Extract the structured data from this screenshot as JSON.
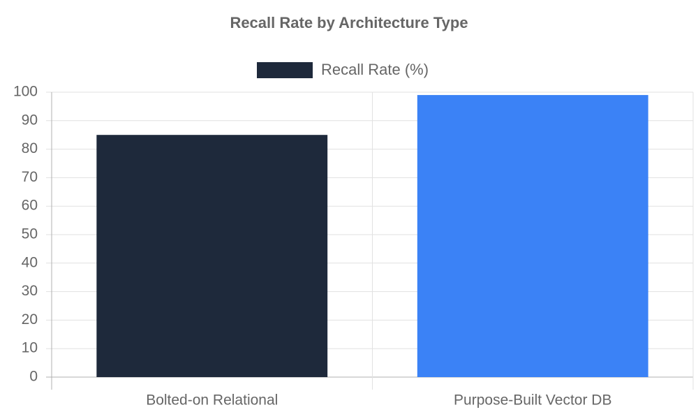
{
  "chart_data": {
    "type": "bar",
    "title": "Recall Rate by Architecture Type",
    "categories": [
      "Bolted-on Relational",
      "Purpose-Built Vector DB"
    ],
    "series": [
      {
        "name": "Recall Rate (%)",
        "colors": [
          "#1e293b",
          "#3b82f6"
        ],
        "values": [
          85,
          99
        ]
      }
    ],
    "ylim": [
      0,
      100
    ],
    "yticks": [
      0,
      10,
      20,
      30,
      40,
      50,
      60,
      70,
      80,
      90,
      100
    ],
    "grid": true,
    "legend": "top"
  }
}
